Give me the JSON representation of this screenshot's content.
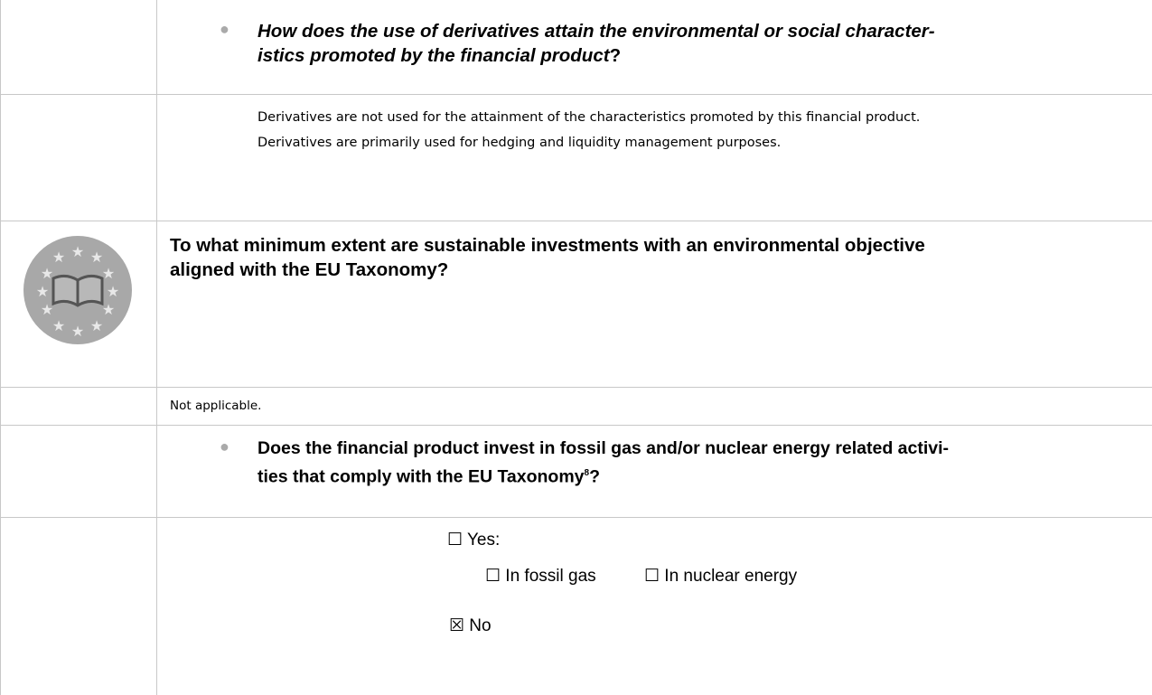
{
  "derivatives_question": {
    "lines": [
      "How does the use of derivatives attain the environmental or social character-",
      "istics promoted by the financial product"
    ],
    "end": "?"
  },
  "derivatives_answer": {
    "lines": [
      "Derivatives are not used for the attainment of the characteristics promoted by this financial product.",
      "Derivatives are primarily used for hedging and liquidity management purposes."
    ]
  },
  "taxonomy_question": {
    "lines": [
      "To what minimum extent are sustainable investments with an environmental objective",
      "aligned with the EU Taxonomy?"
    ]
  },
  "taxonomy_answer": "Not applicable.",
  "fossil_question": {
    "lines": [
      "Does the financial product invest in fossil gas and/or nuclear energy related activi-",
      "ties that comply with the EU Taxonomy"
    ],
    "footnote": "8",
    "end": "?"
  },
  "options": {
    "yes": "☐ Yes:",
    "fossil_gas": "☐ In fossil gas",
    "nuclear": "☐ In nuclear energy",
    "no": "☒ No"
  }
}
